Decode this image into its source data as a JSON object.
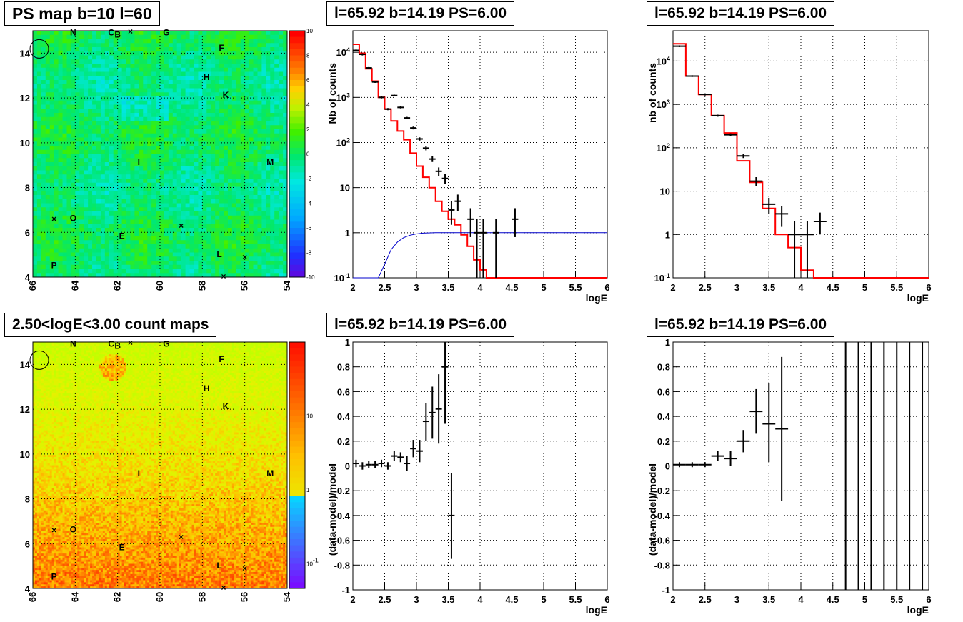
{
  "panels": {
    "map_top": {
      "title": "PS map b=10 l=60"
    },
    "map_bottom": {
      "title": "2.50<logE<3.00 count maps"
    },
    "spec_left": {
      "title": "l=65.92 b=14.19 PS=6.00"
    },
    "spec_right": {
      "title": "l=65.92 b=14.19 PS=6.00"
    },
    "res_left": {
      "title": "l=65.92 b=14.19 PS=6.00"
    },
    "res_right": {
      "title": "l=65.92 b=14.19 PS=6.00"
    }
  },
  "chart_data": [
    {
      "id": "map_top",
      "type": "heatmap",
      "title": "PS map b=10 l=60",
      "x_ticks": [
        "66",
        "64",
        "62",
        "60",
        "58",
        "56",
        "54"
      ],
      "y_ticks": [
        "4",
        "6",
        "8",
        "10",
        "12",
        "14"
      ],
      "colorbar_ticks": [
        "10",
        "8",
        "6",
        "4",
        "2",
        "0",
        "-2",
        "-4",
        "-6",
        "-8",
        "-10"
      ],
      "zlim": [
        -10,
        10
      ],
      "source_labels": [
        {
          "t": "N",
          "x": 64.1,
          "y": 14.8
        },
        {
          "t": "C",
          "x": 62.3,
          "y": 14.8
        },
        {
          "t": "B",
          "x": 62.0,
          "y": 14.7
        },
        {
          "t": "G",
          "x": 59.7,
          "y": 14.8
        },
        {
          "t": "F",
          "x": 57.1,
          "y": 14.1
        },
        {
          "t": "H",
          "x": 57.8,
          "y": 12.8
        },
        {
          "t": "K",
          "x": 56.9,
          "y": 12.0
        },
        {
          "t": "I",
          "x": 61.0,
          "y": 9.0
        },
        {
          "t": "M",
          "x": 54.8,
          "y": 9.0
        },
        {
          "t": "O",
          "x": 64.1,
          "y": 6.5
        },
        {
          "t": "E",
          "x": 61.8,
          "y": 5.7
        },
        {
          "t": "L",
          "x": 57.2,
          "y": 4.9
        },
        {
          "t": "P",
          "x": 65.0,
          "y": 4.4
        }
      ]
    },
    {
      "id": "map_bottom",
      "type": "heatmap",
      "title": "2.50<logE<3.00 count maps",
      "x_ticks": [
        "66",
        "64",
        "62",
        "60",
        "58",
        "56",
        "54"
      ],
      "y_ticks": [
        "4",
        "6",
        "8",
        "10",
        "12",
        "14"
      ],
      "colorbar_ticks": [
        "10",
        "1",
        "10^{-1}"
      ],
      "z_scale": "log",
      "source_labels": [
        {
          "t": "N",
          "x": 64.1,
          "y": 14.8
        },
        {
          "t": "C",
          "x": 62.3,
          "y": 14.8
        },
        {
          "t": "B",
          "x": 62.0,
          "y": 14.7
        },
        {
          "t": "G",
          "x": 59.7,
          "y": 14.8
        },
        {
          "t": "F",
          "x": 57.1,
          "y": 14.1
        },
        {
          "t": "H",
          "x": 57.8,
          "y": 12.8
        },
        {
          "t": "K",
          "x": 56.9,
          "y": 12.0
        },
        {
          "t": "I",
          "x": 61.0,
          "y": 9.0
        },
        {
          "t": "M",
          "x": 54.8,
          "y": 9.0
        },
        {
          "t": "O",
          "x": 64.1,
          "y": 6.5
        },
        {
          "t": "E",
          "x": 61.8,
          "y": 5.7
        },
        {
          "t": "L",
          "x": 57.2,
          "y": 4.9
        },
        {
          "t": "P",
          "x": 65.0,
          "y": 4.4
        }
      ]
    },
    {
      "id": "spec_left",
      "type": "line",
      "title": "l=65.92 b=14.19 PS=6.00",
      "xlabel": "logE",
      "ylabel": "Nb of counts",
      "xlim": [
        2,
        6
      ],
      "ylim": [
        0.1,
        30000
      ],
      "yscale": "log",
      "x_ticks": [
        "2",
        "2.5",
        "3",
        "3.5",
        "4",
        "4.5",
        "5",
        "5.5",
        "6"
      ],
      "y_ticks": [
        {
          "v": 0.1,
          "l": "10^{-1}"
        },
        {
          "v": 1,
          "l": "1"
        },
        {
          "v": 10,
          "l": "10"
        },
        {
          "v": 100,
          "l": "10^{2}"
        },
        {
          "v": 1000,
          "l": "10^{3}"
        },
        {
          "v": 10000,
          "l": "10^{4}"
        }
      ],
      "model_edges": [
        2.0,
        2.1,
        2.2,
        2.3,
        2.4,
        2.5,
        2.6,
        2.7,
        2.8,
        2.9,
        3.0,
        3.1,
        3.2,
        3.3,
        3.4,
        3.5,
        3.6,
        3.7,
        3.8,
        3.9,
        4.0,
        4.1,
        4.2,
        6.0
      ],
      "model_values": [
        15000,
        9500,
        4300,
        2300,
        1000,
        550,
        300,
        180,
        115,
        58,
        30,
        17,
        10,
        5,
        3,
        2,
        1.5,
        0.9,
        0.5,
        0.25,
        0.15,
        0.1,
        0.1
      ],
      "weight_curve": [
        [
          2.0,
          0.1
        ],
        [
          2.4,
          0.1
        ],
        [
          2.5,
          0.2
        ],
        [
          2.6,
          0.42
        ],
        [
          2.7,
          0.62
        ],
        [
          2.8,
          0.78
        ],
        [
          2.9,
          0.88
        ],
        [
          3.0,
          0.94
        ],
        [
          3.1,
          0.98
        ],
        [
          3.3,
          1.0
        ],
        [
          6.0,
          1.0
        ]
      ],
      "points": [
        {
          "x": 2.05,
          "y": 11000,
          "xe": 0.05,
          "ylo": 10500,
          "yhi": 11500
        },
        {
          "x": 2.15,
          "y": 9000,
          "xe": 0.05,
          "ylo": 8500,
          "yhi": 9500
        },
        {
          "x": 2.25,
          "y": 4500,
          "xe": 0.05,
          "ylo": 4300,
          "yhi": 4700
        },
        {
          "x": 2.35,
          "y": 2200,
          "xe": 0.05,
          "ylo": 2100,
          "yhi": 2300
        },
        {
          "x": 2.45,
          "y": 1000,
          "xe": 0.05,
          "ylo": 950,
          "yhi": 1050
        },
        {
          "x": 2.55,
          "y": 550,
          "xe": 0.05,
          "ylo": 520,
          "yhi": 580
        },
        {
          "x": 2.65,
          "y": 1100,
          "xe": 0.05,
          "ylo": 1050,
          "yhi": 1150
        },
        {
          "x": 2.75,
          "y": 600,
          "xe": 0.05,
          "ylo": 570,
          "yhi": 630
        },
        {
          "x": 2.85,
          "y": 350,
          "xe": 0.05,
          "ylo": 330,
          "yhi": 370
        },
        {
          "x": 2.95,
          "y": 210,
          "xe": 0.05,
          "ylo": 195,
          "yhi": 225
        },
        {
          "x": 3.05,
          "y": 120,
          "xe": 0.05,
          "ylo": 110,
          "yhi": 130
        },
        {
          "x": 3.15,
          "y": 75,
          "xe": 0.05,
          "ylo": 67,
          "yhi": 83
        },
        {
          "x": 3.25,
          "y": 43,
          "xe": 0.05,
          "ylo": 37,
          "yhi": 50
        },
        {
          "x": 3.35,
          "y": 23,
          "xe": 0.05,
          "ylo": 18,
          "yhi": 28
        },
        {
          "x": 3.45,
          "y": 16,
          "xe": 0.05,
          "ylo": 12,
          "yhi": 20
        },
        {
          "x": 3.55,
          "y": 3.2,
          "xe": 0.05,
          "ylo": 1.5,
          "yhi": 5
        },
        {
          "x": 3.65,
          "y": 5,
          "xe": 0.05,
          "ylo": 3,
          "yhi": 7
        },
        {
          "x": 3.85,
          "y": 2,
          "xe": 0.05,
          "ylo": 0.8,
          "yhi": 3.5
        },
        {
          "x": 3.95,
          "y": 1,
          "xe": 0.05,
          "ylo": 0.1,
          "yhi": 2
        },
        {
          "x": 4.05,
          "y": 1,
          "xe": 0.05,
          "ylo": 0.1,
          "yhi": 2
        },
        {
          "x": 4.25,
          "y": 1,
          "xe": 0.05,
          "ylo": 0.1,
          "yhi": 2
        },
        {
          "x": 4.55,
          "y": 2,
          "xe": 0.05,
          "ylo": 0.8,
          "yhi": 3.5
        }
      ]
    },
    {
      "id": "spec_right",
      "type": "line",
      "title": "l=65.92 b=14.19 PS=6.00",
      "xlabel": "logE",
      "ylabel": "nb of counts",
      "xlim": [
        2,
        6
      ],
      "ylim": [
        0.1,
        50000
      ],
      "yscale": "log",
      "x_ticks": [
        "2",
        "2.5",
        "3",
        "3.5",
        "4",
        "4.5",
        "5",
        "5.5",
        "6"
      ],
      "y_ticks": [
        {
          "v": 0.1,
          "l": "10^{-1}"
        },
        {
          "v": 1,
          "l": "1"
        },
        {
          "v": 10,
          "l": "10"
        },
        {
          "v": 100,
          "l": "10^{2}"
        },
        {
          "v": 1000,
          "l": "10^{3}"
        },
        {
          "v": 10000,
          "l": "10^{4}"
        }
      ],
      "model_edges": [
        2.0,
        2.2,
        2.4,
        2.6,
        2.8,
        3.0,
        3.2,
        3.4,
        3.6,
        3.8,
        4.0,
        4.2,
        4.4,
        6.0
      ],
      "model_values": [
        25000,
        4500,
        1700,
        550,
        220,
        50,
        16,
        4,
        1,
        0.5,
        0.15,
        0.1,
        0.1
      ],
      "points": [
        {
          "x": 2.1,
          "y": 22000,
          "xe": 0.1,
          "ylo": 21000,
          "yhi": 23000
        },
        {
          "x": 2.3,
          "y": 4500,
          "xe": 0.1,
          "ylo": 4300,
          "yhi": 4700
        },
        {
          "x": 2.5,
          "y": 1700,
          "xe": 0.1,
          "ylo": 1600,
          "yhi": 1800
        },
        {
          "x": 2.7,
          "y": 550,
          "xe": 0.1,
          "ylo": 520,
          "yhi": 580
        },
        {
          "x": 2.9,
          "y": 200,
          "xe": 0.1,
          "ylo": 185,
          "yhi": 215
        },
        {
          "x": 3.1,
          "y": 65,
          "xe": 0.1,
          "ylo": 58,
          "yhi": 72
        },
        {
          "x": 3.3,
          "y": 17,
          "xe": 0.1,
          "ylo": 13,
          "yhi": 21
        },
        {
          "x": 3.5,
          "y": 5,
          "xe": 0.1,
          "ylo": 3,
          "yhi": 7
        },
        {
          "x": 3.7,
          "y": 3,
          "xe": 0.1,
          "ylo": 1.5,
          "yhi": 4.5
        },
        {
          "x": 3.9,
          "y": 1,
          "xe": 0.1,
          "ylo": 0.1,
          "yhi": 2
        },
        {
          "x": 4.1,
          "y": 1,
          "xe": 0.1,
          "ylo": 0.1,
          "yhi": 2
        },
        {
          "x": 4.3,
          "y": 2,
          "xe": 0.1,
          "ylo": 1,
          "yhi": 3.2
        }
      ]
    },
    {
      "id": "res_left",
      "type": "scatter",
      "title": "l=65.92 b=14.19 PS=6.00",
      "xlabel": "logE",
      "ylabel": "(data-model)/model",
      "xlim": [
        2,
        6
      ],
      "ylim": [
        -1,
        1
      ],
      "x_ticks": [
        "2",
        "2.5",
        "3",
        "3.5",
        "4",
        "4.5",
        "5",
        "5.5",
        "6"
      ],
      "y_ticks": [
        "-1",
        "-0.8",
        "-0.6",
        "-0.4",
        "-0.2",
        "0",
        "0.2",
        "0.4",
        "0.6",
        "0.8",
        "1"
      ],
      "points": [
        {
          "x": 2.05,
          "y": 0.02,
          "xe": 0.05,
          "ylo": -0.01,
          "yhi": 0.05
        },
        {
          "x": 2.15,
          "y": 0.0,
          "xe": 0.05,
          "ylo": -0.03,
          "yhi": 0.03
        },
        {
          "x": 2.25,
          "y": 0.01,
          "xe": 0.05,
          "ylo": -0.02,
          "yhi": 0.04
        },
        {
          "x": 2.35,
          "y": 0.01,
          "xe": 0.05,
          "ylo": -0.02,
          "yhi": 0.04
        },
        {
          "x": 2.45,
          "y": 0.02,
          "xe": 0.05,
          "ylo": -0.01,
          "yhi": 0.05
        },
        {
          "x": 2.55,
          "y": 0.0,
          "xe": 0.05,
          "ylo": -0.03,
          "yhi": 0.03
        },
        {
          "x": 2.65,
          "y": 0.08,
          "xe": 0.05,
          "ylo": 0.04,
          "yhi": 0.12
        },
        {
          "x": 2.75,
          "y": 0.07,
          "xe": 0.05,
          "ylo": 0.03,
          "yhi": 0.11
        },
        {
          "x": 2.85,
          "y": 0.02,
          "xe": 0.05,
          "ylo": -0.04,
          "yhi": 0.08
        },
        {
          "x": 2.95,
          "y": 0.14,
          "xe": 0.05,
          "ylo": 0.07,
          "yhi": 0.21
        },
        {
          "x": 3.05,
          "y": 0.12,
          "xe": 0.05,
          "ylo": 0.03,
          "yhi": 0.21
        },
        {
          "x": 3.15,
          "y": 0.36,
          "xe": 0.05,
          "ylo": 0.2,
          "yhi": 0.51
        },
        {
          "x": 3.25,
          "y": 0.43,
          "xe": 0.05,
          "ylo": 0.22,
          "yhi": 0.64
        },
        {
          "x": 3.35,
          "y": 0.46,
          "xe": 0.05,
          "ylo": 0.18,
          "yhi": 0.74
        },
        {
          "x": 3.45,
          "y": 0.8,
          "xe": 0.05,
          "ylo": 0.34,
          "yhi": 1.0
        },
        {
          "x": 3.55,
          "y": -0.4,
          "xe": 0.05,
          "ylo": -0.75,
          "yhi": -0.06
        }
      ]
    },
    {
      "id": "res_right",
      "type": "scatter",
      "title": "l=65.92 b=14.19 PS=6.00",
      "xlabel": "logE",
      "ylabel": "(data-model)/model",
      "xlim": [
        2,
        6
      ],
      "ylim": [
        -1,
        1
      ],
      "x_ticks": [
        "2",
        "2.5",
        "3",
        "3.5",
        "4",
        "4.5",
        "5",
        "5.5",
        "6"
      ],
      "y_ticks": [
        "-1",
        "-0.8",
        "-0.6",
        "-0.4",
        "-0.2",
        "0",
        "0.2",
        "0.4",
        "0.6",
        "0.8",
        "1"
      ],
      "points": [
        {
          "x": 2.1,
          "y": 0.01,
          "xe": 0.1,
          "ylo": -0.01,
          "yhi": 0.03
        },
        {
          "x": 2.3,
          "y": 0.01,
          "xe": 0.1,
          "ylo": -0.01,
          "yhi": 0.03
        },
        {
          "x": 2.5,
          "y": 0.01,
          "xe": 0.1,
          "ylo": -0.01,
          "yhi": 0.03
        },
        {
          "x": 2.7,
          "y": 0.08,
          "xe": 0.1,
          "ylo": 0.04,
          "yhi": 0.12
        },
        {
          "x": 2.9,
          "y": 0.06,
          "xe": 0.1,
          "ylo": 0.0,
          "yhi": 0.12
        },
        {
          "x": 3.1,
          "y": 0.2,
          "xe": 0.1,
          "ylo": 0.11,
          "yhi": 0.29
        },
        {
          "x": 3.3,
          "y": 0.44,
          "xe": 0.1,
          "ylo": 0.26,
          "yhi": 0.62
        },
        {
          "x": 3.5,
          "y": 0.34,
          "xe": 0.1,
          "ylo": 0.03,
          "yhi": 0.67
        },
        {
          "x": 3.7,
          "y": 0.3,
          "xe": 0.1,
          "ylo": -0.28,
          "yhi": 0.88
        }
      ],
      "vertical_bars_x": [
        4.7,
        4.9,
        5.1,
        5.3,
        5.5,
        5.7,
        5.9
      ]
    }
  ],
  "colors": {
    "model": "#ff0000",
    "weight": "#0000cc",
    "data": "#000000"
  }
}
